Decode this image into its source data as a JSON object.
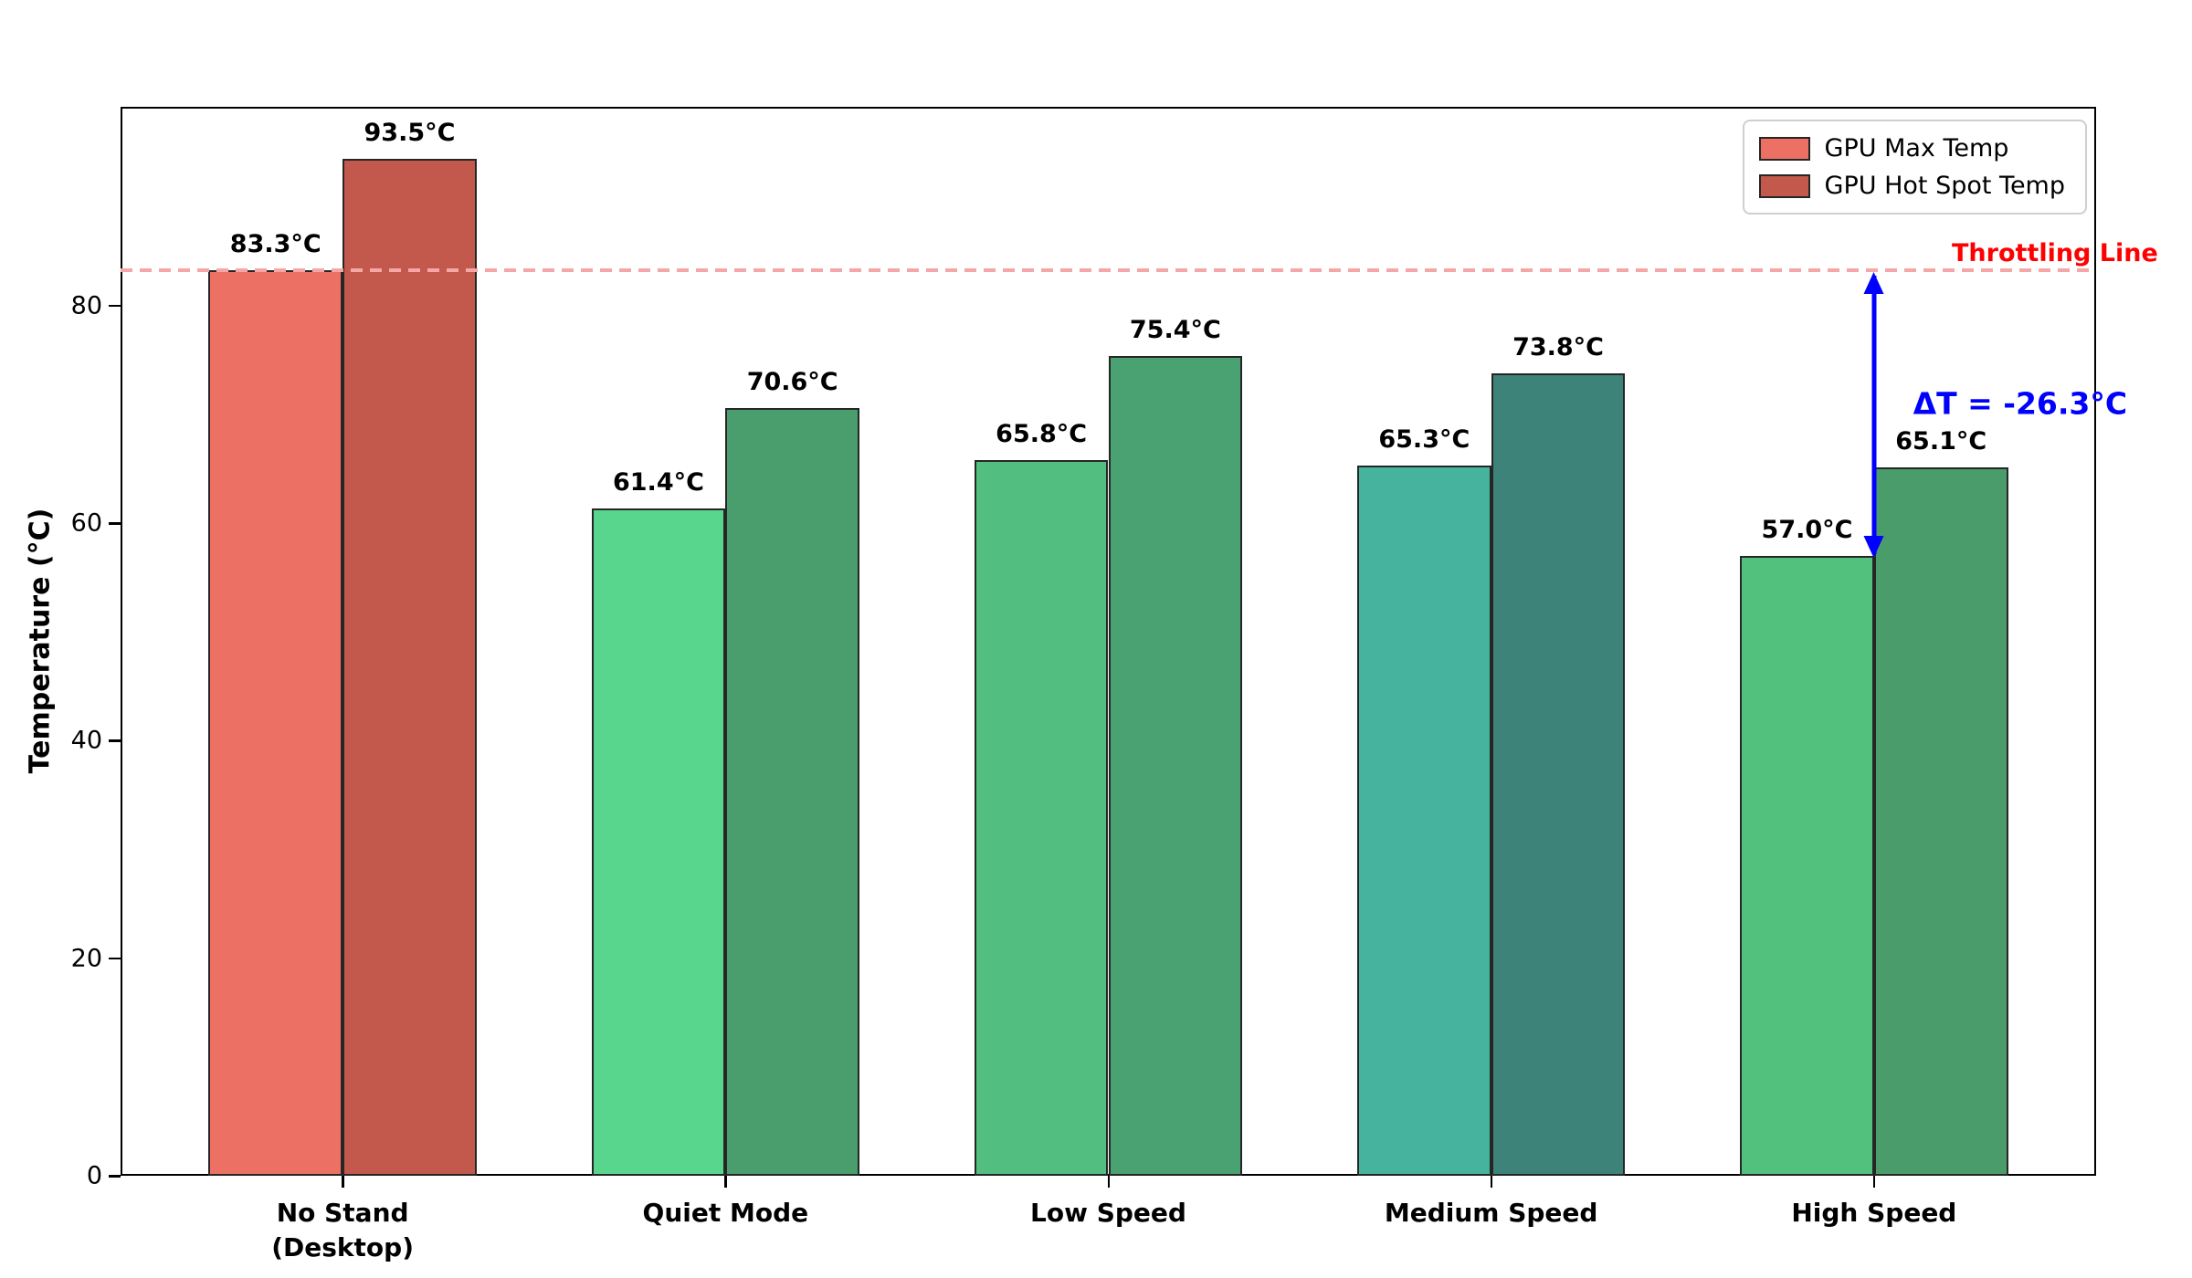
{
  "chart_data": {
    "type": "bar",
    "title": "",
    "xlabel": "",
    "ylabel": "Temperature (°C)",
    "categories": [
      "No Stand\n(Desktop)",
      "Quiet Mode",
      "Low Speed",
      "Medium Speed",
      "High Speed"
    ],
    "series": [
      {
        "name": "GPU Max Temp",
        "values": [
          83.3,
          61.4,
          65.8,
          65.3,
          57.0
        ],
        "value_labels": [
          "83.3°C",
          "61.4°C",
          "65.8°C",
          "65.3°C",
          "57.0°C"
        ],
        "colors": [
          "#EC7063",
          "#58D68D",
          "#52BE80",
          "#45B39D",
          "#51C17D"
        ]
      },
      {
        "name": "GPU Hot Spot Temp",
        "values": [
          93.5,
          70.6,
          75.4,
          73.8,
          65.1
        ],
        "value_labels": [
          "93.5°C",
          "70.6°C",
          "75.4°C",
          "73.8°C",
          "65.1°C"
        ],
        "colors": [
          "#C2594C",
          "#4A9D6C",
          "#4AA172",
          "#3D8379",
          "#4A9D6B"
        ]
      }
    ],
    "yticks": [
      0,
      20,
      40,
      60,
      80
    ],
    "ylim": [
      0,
      98.3
    ],
    "grid": false,
    "legend_position": "top-right",
    "annotations": {
      "throttling_line": {
        "y": 83.3,
        "label": "Throttling Line",
        "label_color": "#FF0000",
        "line_color": "#F5A6A6",
        "style": "dashed"
      },
      "delta": {
        "label": "ΔT = -26.3°C",
        "color": "#0000FF",
        "arrow_from_y": 83.3,
        "arrow_to_y": 57.0
      }
    }
  }
}
